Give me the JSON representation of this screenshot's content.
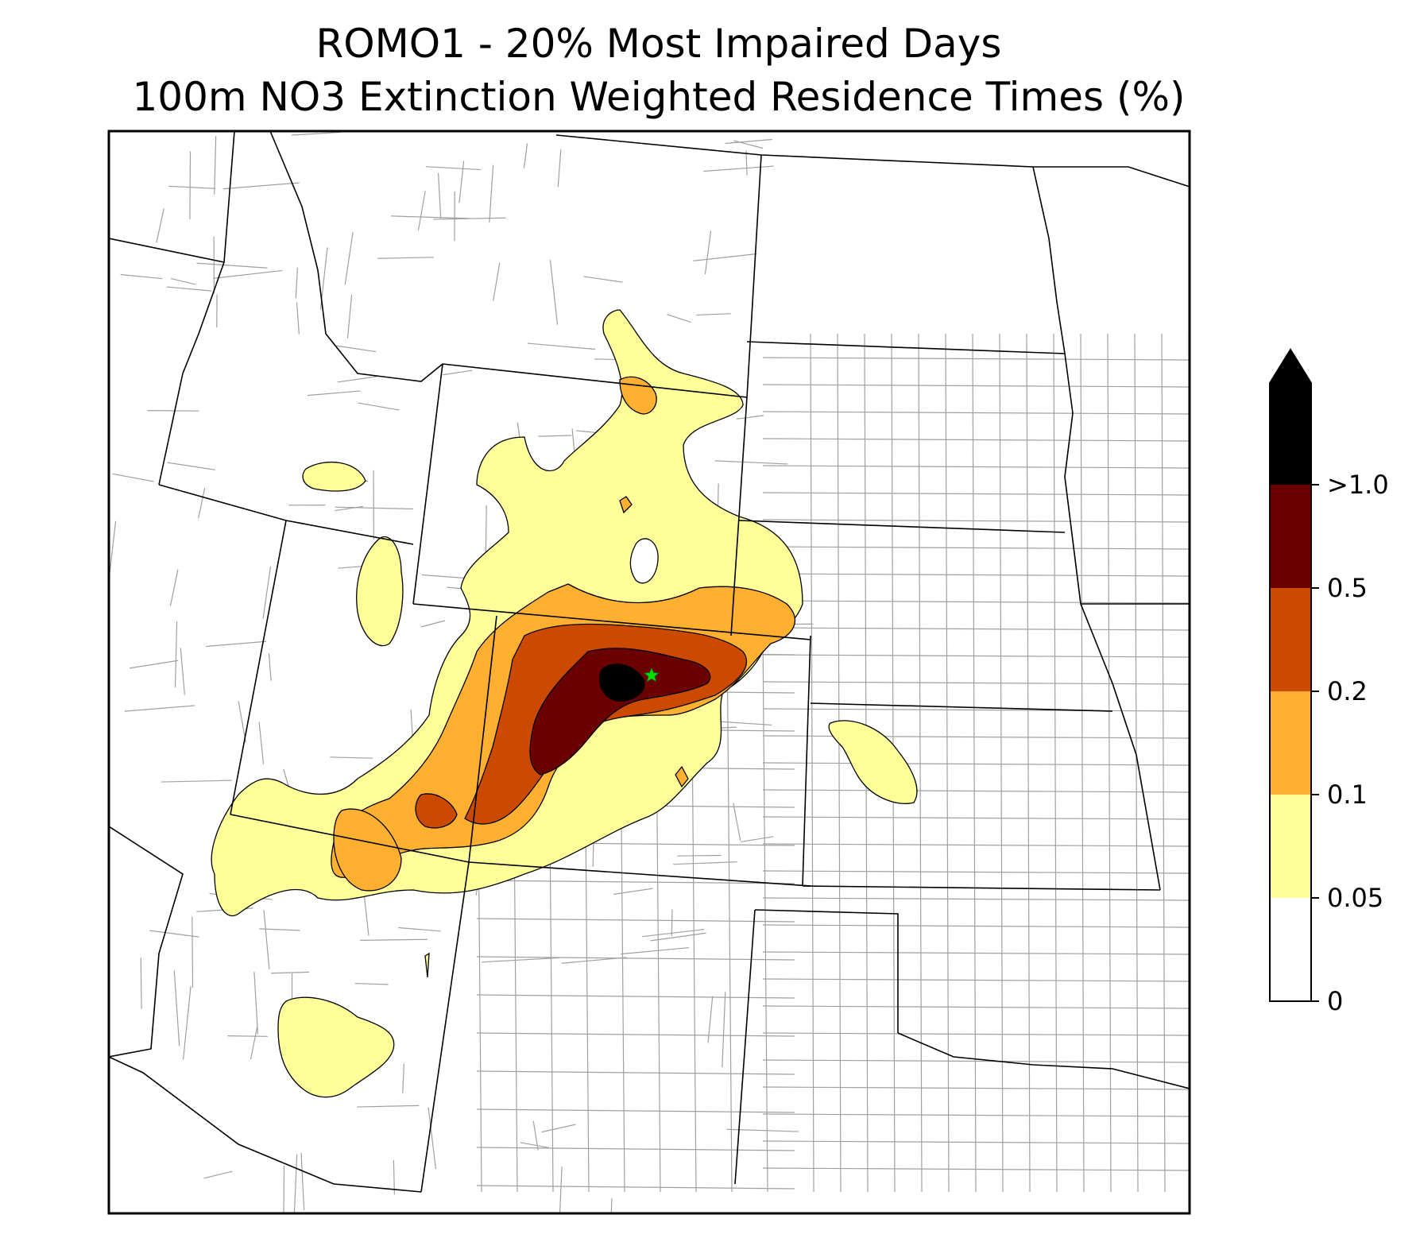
{
  "title": {
    "line1": "ROMO1 - 20% Most Impaired Days",
    "line2": "100m NO3 Extinction Weighted Residence Times (%)"
  },
  "colorbar": {
    "extend": "max",
    "levels": [
      {
        "label": "0",
        "color": "#ffffff"
      },
      {
        "label": "0.05",
        "color": "#ffff99"
      },
      {
        "label": "0.1",
        "color": "#ffb030"
      },
      {
        "label": "0.2",
        "color": "#cc4a00"
      },
      {
        "label": "0.5",
        "color": "#6a0000"
      },
      {
        "label": ">1.0",
        "color": "#000000"
      }
    ],
    "extend_color": "#000000"
  },
  "map": {
    "receptor_marker": {
      "name": "star",
      "color": "#00e000"
    },
    "state_border_color": "#000000",
    "county_border_color": "#a0a0a0"
  }
}
